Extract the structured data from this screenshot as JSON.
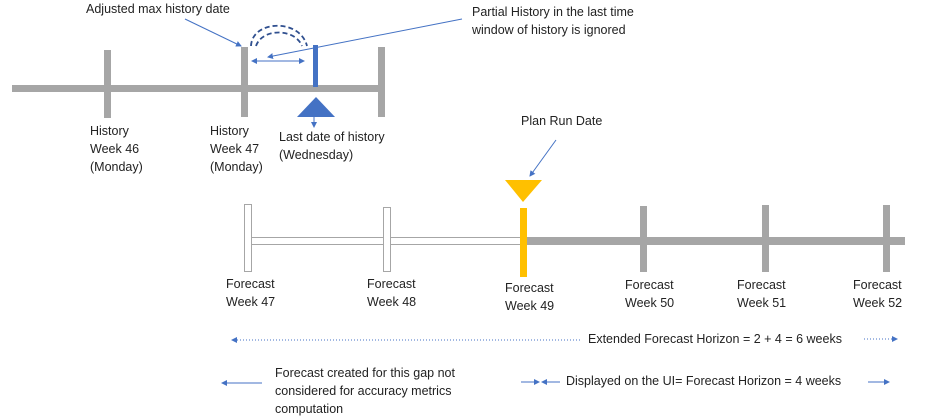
{
  "colors": {
    "bar": "#a6a6a6",
    "history_marker": "#4472c4",
    "plan_run": "#ffc000",
    "arrow": "#4472c4"
  },
  "top": {
    "adjusted_label": "Adjusted max history date",
    "partial_label": [
      "Partial History in the last time",
      "window of history is ignored"
    ],
    "week46": [
      "History",
      "Week 46",
      "(Monday)"
    ],
    "week47": [
      "History",
      "Week 47",
      "(Monday)"
    ],
    "last_date": [
      "Last date of history",
      "(Wednesday)"
    ]
  },
  "bottom": {
    "plan_run_label": "Plan Run Date",
    "weeks": [
      [
        "Forecast",
        "Week 47"
      ],
      [
        "Forecast",
        "Week 48"
      ],
      [
        "Forecast",
        "Week 49"
      ],
      [
        "Forecast",
        "Week 50"
      ],
      [
        "Forecast",
        "Week 51"
      ],
      [
        "Forecast",
        "Week 52"
      ]
    ]
  },
  "legend": {
    "extended": "Extended Forecast Horizon = 2 + 4 = 6 weeks",
    "gap": [
      "Forecast created for this gap not",
      "considered for accuracy metrics",
      "computation"
    ],
    "displayed": "Displayed on the UI= Forecast Horizon =  4 weeks"
  }
}
